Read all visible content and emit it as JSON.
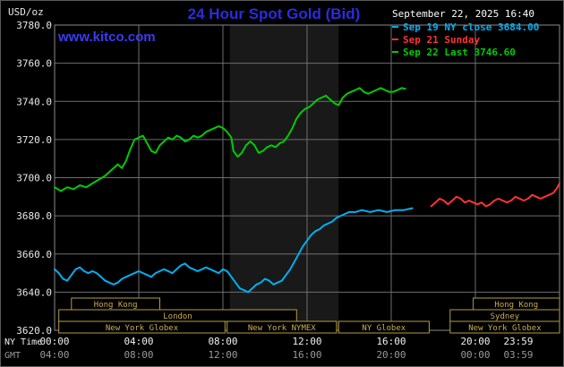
{
  "header": {
    "unit_label": "USD/oz",
    "title": "24 Hour Spot Gold (Bid)",
    "datetime": "September 22, 2025 16:40",
    "watermark": "www.kitco.com"
  },
  "legend": {
    "items": [
      {
        "label": "Sep 19 NY close 3684.00",
        "color": "#00b0f0"
      },
      {
        "label": "Sep 21 Sunday",
        "color": "#ff3333"
      },
      {
        "label": "Sep 22 Last 3746.60",
        "color": "#00cc00"
      }
    ]
  },
  "axes": {
    "ny_time_label": "NY Time",
    "gmt_label": "GMT",
    "x_ticks_ny": [
      "00:00",
      "04:00",
      "08:00",
      "12:00",
      "16:00",
      "20:00",
      "23:59"
    ],
    "x_ticks_gmt": [
      "04:00",
      "08:00",
      "12:00",
      "16:00",
      "20:00",
      "00:00",
      "03:59"
    ],
    "y_ticks": [
      3780,
      3760,
      3740,
      3720,
      3700,
      3680,
      3660,
      3640,
      3620
    ]
  },
  "sessions": [
    {
      "label": "Hong Kong",
      "row": 0,
      "start": 0.8,
      "end": 5.0
    },
    {
      "label": "Hong Kong",
      "row": 0,
      "start": 19.9,
      "end": 24
    },
    {
      "label": "London",
      "row": 1,
      "start": 0.2,
      "end": 11.5
    },
    {
      "label": "Sydney",
      "row": 1,
      "start": 18.8,
      "end": 24
    },
    {
      "label": "New York Globex",
      "row": 2,
      "start": 0.2,
      "end": 8.1
    },
    {
      "label": "New York NYMEX",
      "row": 2,
      "start": 8.2,
      "end": 13.4
    },
    {
      "label": "NY Globex",
      "row": 2,
      "start": 13.5,
      "end": 17.8
    },
    {
      "label": "New York Globex",
      "row": 2,
      "start": 18.8,
      "end": 24
    }
  ],
  "chart_data": {
    "type": "line",
    "title": "24 Hour Spot Gold (Bid)",
    "xlabel": "NY Time (hours 00:00-23:59)",
    "ylabel": "USD/oz",
    "xlim_hours": [
      0,
      24
    ],
    "ylim": [
      3620,
      3780
    ],
    "x_tick_hours": [
      0,
      4,
      8,
      12,
      16,
      20,
      24
    ],
    "grid": true,
    "legend_position": "top-right",
    "nymex_band_hours": [
      8.33,
      13.5
    ],
    "band_color": "#191919",
    "grid_color": "#6e6e6e",
    "series": [
      {
        "name": "Sep 19 NY close 3684.00",
        "color": "#00b0f0",
        "points": [
          [
            0,
            3652
          ],
          [
            0.2,
            3650
          ],
          [
            0.4,
            3647
          ],
          [
            0.6,
            3646
          ],
          [
            0.8,
            3649
          ],
          [
            1,
            3652
          ],
          [
            1.2,
            3653
          ],
          [
            1.4,
            3651
          ],
          [
            1.6,
            3650
          ],
          [
            1.8,
            3651
          ],
          [
            2,
            3650
          ],
          [
            2.2,
            3648
          ],
          [
            2.4,
            3646
          ],
          [
            2.6,
            3645
          ],
          [
            2.8,
            3644
          ],
          [
            3,
            3645
          ],
          [
            3.2,
            3647
          ],
          [
            3.4,
            3648
          ],
          [
            3.6,
            3649
          ],
          [
            3.8,
            3650
          ],
          [
            4,
            3651
          ],
          [
            4.2,
            3650
          ],
          [
            4.4,
            3649
          ],
          [
            4.6,
            3648
          ],
          [
            4.8,
            3650
          ],
          [
            5,
            3651
          ],
          [
            5.2,
            3652
          ],
          [
            5.4,
            3651
          ],
          [
            5.6,
            3650
          ],
          [
            5.8,
            3652
          ],
          [
            6,
            3654
          ],
          [
            6.2,
            3655
          ],
          [
            6.4,
            3653
          ],
          [
            6.6,
            3652
          ],
          [
            6.8,
            3651
          ],
          [
            7,
            3652
          ],
          [
            7.2,
            3653
          ],
          [
            7.4,
            3652
          ],
          [
            7.6,
            3651
          ],
          [
            7.8,
            3650
          ],
          [
            8,
            3652
          ],
          [
            8.2,
            3651
          ],
          [
            8.4,
            3648
          ],
          [
            8.6,
            3645
          ],
          [
            8.8,
            3642
          ],
          [
            9,
            3641
          ],
          [
            9.2,
            3640
          ],
          [
            9.4,
            3642
          ],
          [
            9.6,
            3644
          ],
          [
            9.8,
            3645
          ],
          [
            10,
            3647
          ],
          [
            10.2,
            3646
          ],
          [
            10.4,
            3644
          ],
          [
            10.6,
            3645
          ],
          [
            10.8,
            3646
          ],
          [
            11,
            3649
          ],
          [
            11.2,
            3652
          ],
          [
            11.4,
            3656
          ],
          [
            11.6,
            3660
          ],
          [
            11.8,
            3664
          ],
          [
            12,
            3667
          ],
          [
            12.2,
            3670
          ],
          [
            12.4,
            3672
          ],
          [
            12.6,
            3673
          ],
          [
            12.8,
            3675
          ],
          [
            13,
            3676
          ],
          [
            13.2,
            3677
          ],
          [
            13.4,
            3679
          ],
          [
            13.6,
            3680
          ],
          [
            13.8,
            3681
          ],
          [
            14,
            3682
          ],
          [
            14.3,
            3682
          ],
          [
            14.6,
            3683
          ],
          [
            15,
            3682
          ],
          [
            15.4,
            3683
          ],
          [
            15.8,
            3682
          ],
          [
            16.2,
            3683
          ],
          [
            16.6,
            3683
          ],
          [
            17,
            3684
          ]
        ]
      },
      {
        "name": "Sep 21 Sunday",
        "color": "#ff3333",
        "points": [
          [
            17.9,
            3685
          ],
          [
            18.1,
            3687
          ],
          [
            18.3,
            3689
          ],
          [
            18.5,
            3688
          ],
          [
            18.7,
            3686
          ],
          [
            18.9,
            3688
          ],
          [
            19.1,
            3690
          ],
          [
            19.3,
            3689
          ],
          [
            19.5,
            3687
          ],
          [
            19.7,
            3688
          ],
          [
            19.9,
            3687
          ],
          [
            20.1,
            3686
          ],
          [
            20.3,
            3687
          ],
          [
            20.5,
            3685
          ],
          [
            20.7,
            3686
          ],
          [
            20.9,
            3688
          ],
          [
            21.1,
            3689
          ],
          [
            21.3,
            3688
          ],
          [
            21.5,
            3687
          ],
          [
            21.7,
            3688
          ],
          [
            21.9,
            3690
          ],
          [
            22.1,
            3689
          ],
          [
            22.3,
            3688
          ],
          [
            22.5,
            3689
          ],
          [
            22.7,
            3691
          ],
          [
            22.9,
            3690
          ],
          [
            23.1,
            3689
          ],
          [
            23.3,
            3690
          ],
          [
            23.5,
            3691
          ],
          [
            23.7,
            3692
          ],
          [
            23.85,
            3694
          ],
          [
            24,
            3697
          ]
        ]
      },
      {
        "name": "Sep 22 Last 3746.60",
        "color": "#00cc00",
        "points": [
          [
            0,
            3695
          ],
          [
            0.3,
            3693
          ],
          [
            0.6,
            3695
          ],
          [
            0.9,
            3694
          ],
          [
            1.2,
            3696
          ],
          [
            1.5,
            3695
          ],
          [
            1.8,
            3697
          ],
          [
            2.1,
            3699
          ],
          [
            2.4,
            3701
          ],
          [
            2.7,
            3704
          ],
          [
            3,
            3707
          ],
          [
            3.2,
            3705
          ],
          [
            3.4,
            3709
          ],
          [
            3.6,
            3715
          ],
          [
            3.8,
            3720
          ],
          [
            4,
            3721
          ],
          [
            4.2,
            3722
          ],
          [
            4.4,
            3718
          ],
          [
            4.6,
            3714
          ],
          [
            4.8,
            3713
          ],
          [
            5,
            3717
          ],
          [
            5.2,
            3719
          ],
          [
            5.4,
            3721
          ],
          [
            5.6,
            3720
          ],
          [
            5.8,
            3722
          ],
          [
            6,
            3721
          ],
          [
            6.2,
            3719
          ],
          [
            6.4,
            3720
          ],
          [
            6.6,
            3722
          ],
          [
            6.8,
            3721
          ],
          [
            7,
            3722
          ],
          [
            7.2,
            3724
          ],
          [
            7.4,
            3725
          ],
          [
            7.6,
            3726
          ],
          [
            7.8,
            3727
          ],
          [
            8,
            3726
          ],
          [
            8.2,
            3724
          ],
          [
            8.4,
            3721
          ],
          [
            8.5,
            3714
          ],
          [
            8.7,
            3711
          ],
          [
            8.9,
            3713
          ],
          [
            9.1,
            3717
          ],
          [
            9.3,
            3719
          ],
          [
            9.5,
            3717
          ],
          [
            9.7,
            3713
          ],
          [
            9.9,
            3714
          ],
          [
            10.1,
            3716
          ],
          [
            10.3,
            3717
          ],
          [
            10.5,
            3716
          ],
          [
            10.7,
            3718
          ],
          [
            10.9,
            3719
          ],
          [
            11.1,
            3722
          ],
          [
            11.3,
            3726
          ],
          [
            11.5,
            3731
          ],
          [
            11.7,
            3734
          ],
          [
            11.9,
            3736
          ],
          [
            12.1,
            3737
          ],
          [
            12.3,
            3739
          ],
          [
            12.5,
            3741
          ],
          [
            12.7,
            3742
          ],
          [
            12.9,
            3743
          ],
          [
            13.1,
            3741
          ],
          [
            13.3,
            3739
          ],
          [
            13.5,
            3738
          ],
          [
            13.7,
            3742
          ],
          [
            13.9,
            3744
          ],
          [
            14.1,
            3745
          ],
          [
            14.3,
            3746
          ],
          [
            14.5,
            3747
          ],
          [
            14.7,
            3745
          ],
          [
            14.9,
            3744
          ],
          [
            15.1,
            3745
          ],
          [
            15.3,
            3746
          ],
          [
            15.5,
            3747
          ],
          [
            15.7,
            3746
          ],
          [
            15.9,
            3745
          ],
          [
            16.1,
            3745
          ],
          [
            16.3,
            3746
          ],
          [
            16.5,
            3747
          ],
          [
            16.67,
            3746.6
          ]
        ]
      }
    ]
  }
}
